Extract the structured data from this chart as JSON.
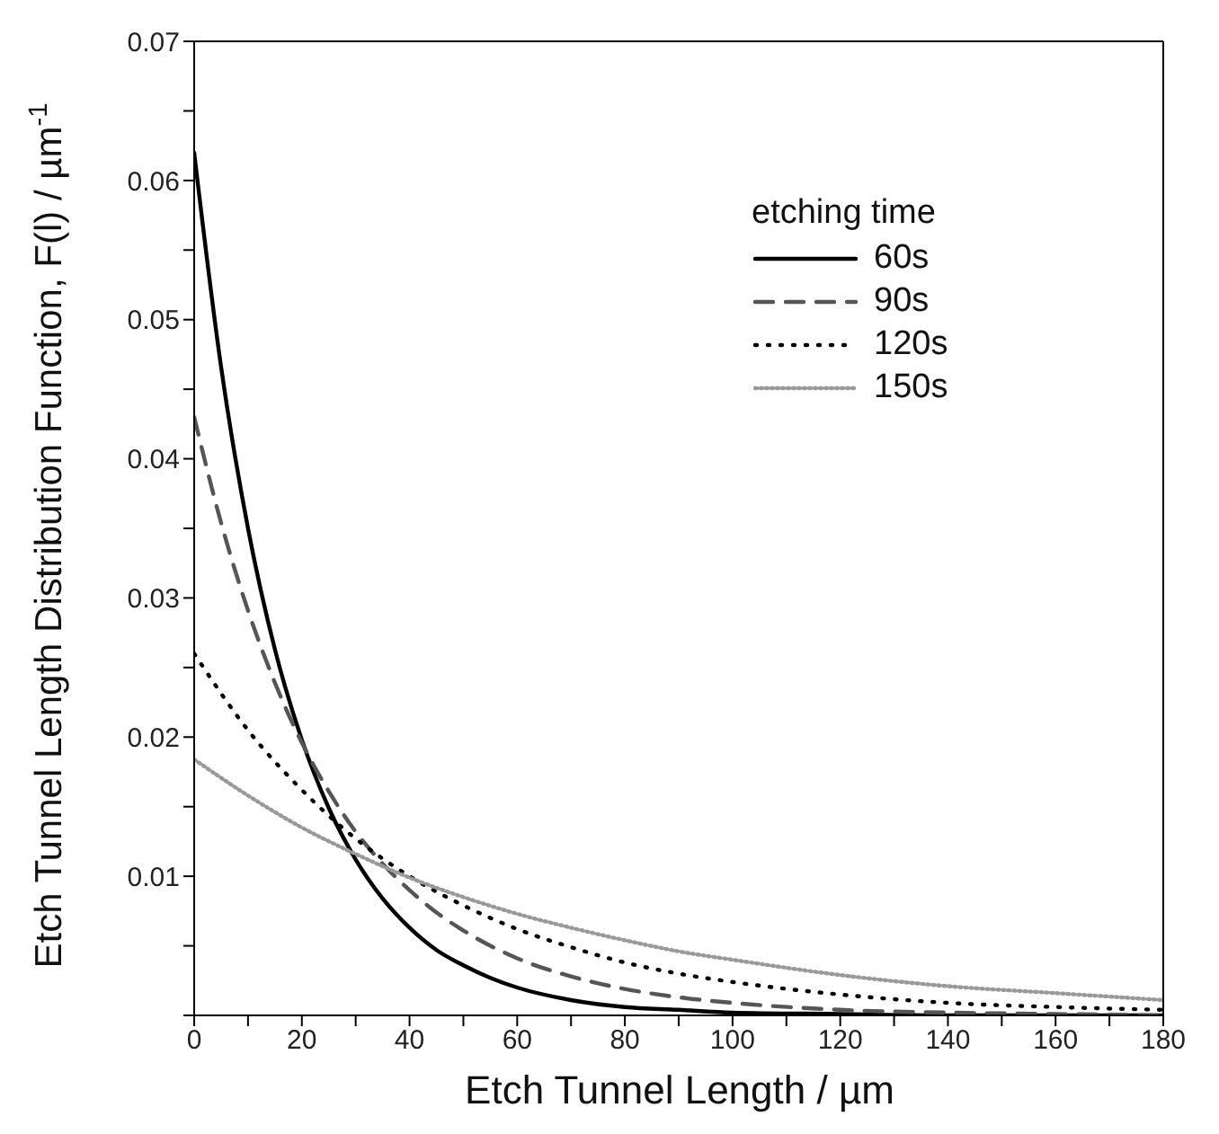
{
  "chart_data": {
    "type": "line",
    "xlabel": "Etch Tunnel Length / µm",
    "ylabel": "Etch Tunnel Length Distribution Function, F(l) / µm$^{-1}$",
    "legend_title": "etching time",
    "legend": "top right",
    "marker": "none",
    "xlim": [
      0,
      180
    ],
    "ylim": [
      0,
      0.07
    ],
    "xticks": [
      0,
      {
        "value": 10,
        "label": null
      },
      20,
      {
        "value": 30,
        "label": null
      },
      40,
      {
        "value": 50,
        "label": null
      },
      60,
      {
        "value": 70,
        "label": null
      },
      80,
      {
        "value": 90,
        "label": null
      },
      100,
      {
        "value": 110,
        "label": null
      },
      120,
      {
        "value": 130,
        "label": null
      },
      140,
      {
        "value": 150,
        "label": null
      },
      160,
      {
        "value": 170,
        "label": null
      },
      180
    ],
    "yticks": [
      {
        "value": 0,
        "label": null
      },
      {
        "value": 0.005,
        "label": null
      },
      0.01,
      {
        "value": 0.015,
        "label": null
      },
      0.02,
      {
        "value": 0.025,
        "label": null
      },
      0.03,
      {
        "value": 0.035,
        "label": null
      },
      0.04,
      {
        "value": 0.045,
        "label": null
      },
      0.05,
      {
        "value": 0.055,
        "label": null
      },
      0.06,
      {
        "value": 0.065,
        "label": null
      },
      0.07
    ],
    "series": [
      {
        "name": "60s",
        "color": "#000000",
        "line_style": "solid",
        "x": [
          0,
          5,
          10,
          15,
          20,
          25,
          30,
          35,
          40,
          45,
          50,
          55,
          60,
          70,
          80,
          90,
          100,
          120,
          140,
          180
        ],
        "values": [
          0.062,
          0.0466,
          0.035,
          0.0263,
          0.0198,
          0.0149,
          0.0112,
          0.0084,
          0.0063,
          0.0047,
          0.0036,
          0.0027,
          0.002,
          0.0011,
          0.0006,
          0.0004,
          0.0002,
          0.0001,
          0,
          0
        ]
      },
      {
        "name": "90s",
        "color": "#555555",
        "line_style": "dashed",
        "x": [
          0,
          5,
          10,
          15,
          20,
          25,
          30,
          35,
          40,
          45,
          50,
          60,
          70,
          80,
          90,
          100,
          120,
          140,
          160,
          180
        ],
        "values": [
          0.043,
          0.0354,
          0.0291,
          0.0239,
          0.0196,
          0.0161,
          0.0132,
          0.0109,
          0.009,
          0.0074,
          0.0061,
          0.0041,
          0.0028,
          0.0019,
          0.0013,
          0.0009,
          0.0004,
          0.0002,
          0.0001,
          0
        ]
      },
      {
        "name": "120s",
        "color": "#000000",
        "line_style": "dotted",
        "x": [
          0,
          10,
          20,
          30,
          40,
          50,
          60,
          70,
          80,
          90,
          100,
          120,
          140,
          160,
          180
        ],
        "values": [
          0.026,
          0.0205,
          0.0162,
          0.0127,
          0.01,
          0.0079,
          0.0062,
          0.0049,
          0.0038,
          0.003,
          0.0024,
          0.0015,
          0.0009,
          0.0006,
          0.0004
        ]
      },
      {
        "name": "150s",
        "color": "#999999",
        "line_style": "dotted",
        "x": [
          0,
          10,
          20,
          30,
          40,
          50,
          60,
          70,
          80,
          90,
          100,
          120,
          140,
          160,
          180
        ],
        "values": [
          0.0184,
          0.0158,
          0.0135,
          0.0116,
          0.0099,
          0.0085,
          0.0073,
          0.0063,
          0.0054,
          0.0046,
          0.004,
          0.0029,
          0.0021,
          0.0016,
          0.0011
        ]
      }
    ]
  }
}
